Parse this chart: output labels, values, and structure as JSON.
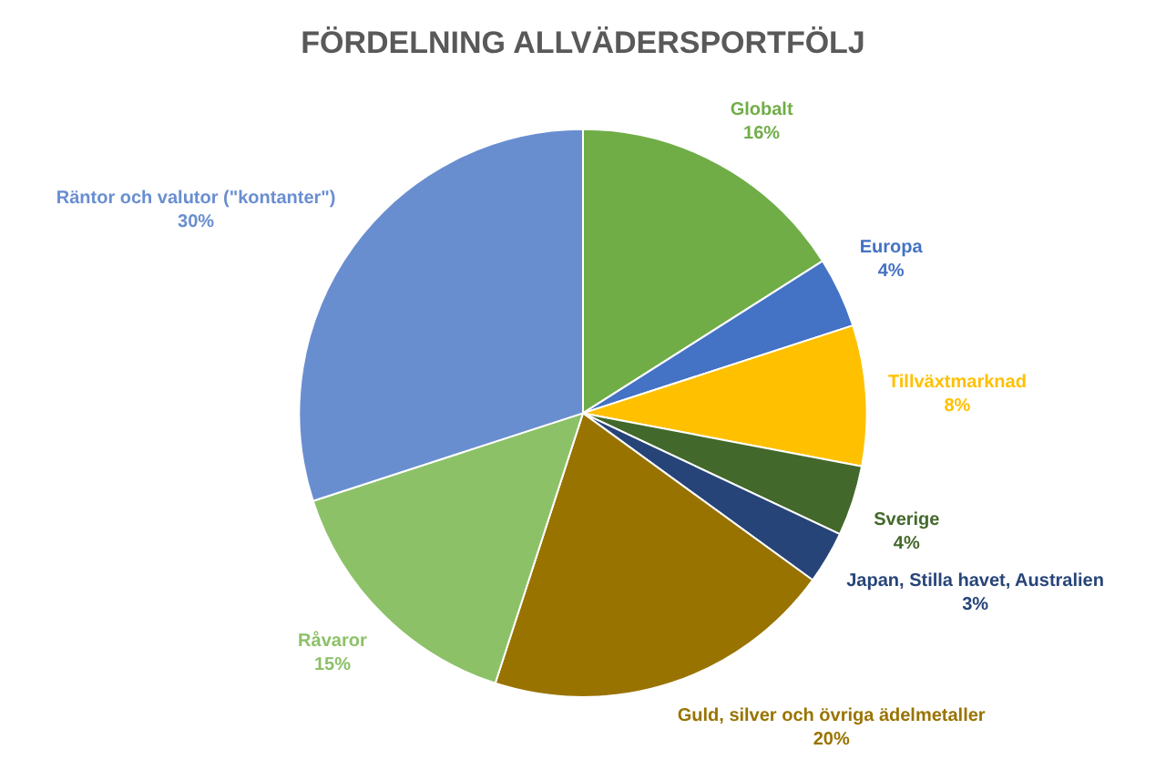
{
  "chart_data": {
    "type": "pie",
    "title": "FÖRDELNING ALLVÄDERSPORTFÖLJ",
    "categories": [
      "Globalt",
      "Europa",
      "Tillväxtmarknad",
      "Sverige",
      "Japan, Stilla havet, Australien",
      "Guld, silver och övriga ädelmetaller",
      "Råvaror",
      "Räntor och valutor (\"kontanter\")"
    ],
    "values": [
      16,
      4,
      8,
      4,
      3,
      20,
      15,
      30
    ],
    "value_labels": [
      "16%",
      "4%",
      "8%",
      "4%",
      "3%",
      "20%",
      "15%",
      "30%"
    ],
    "colors": [
      "#70ad47",
      "#4472c4",
      "#ffc000",
      "#43682b",
      "#264478",
      "#997300",
      "#8cc168",
      "#698ed0"
    ],
    "legend": false
  }
}
